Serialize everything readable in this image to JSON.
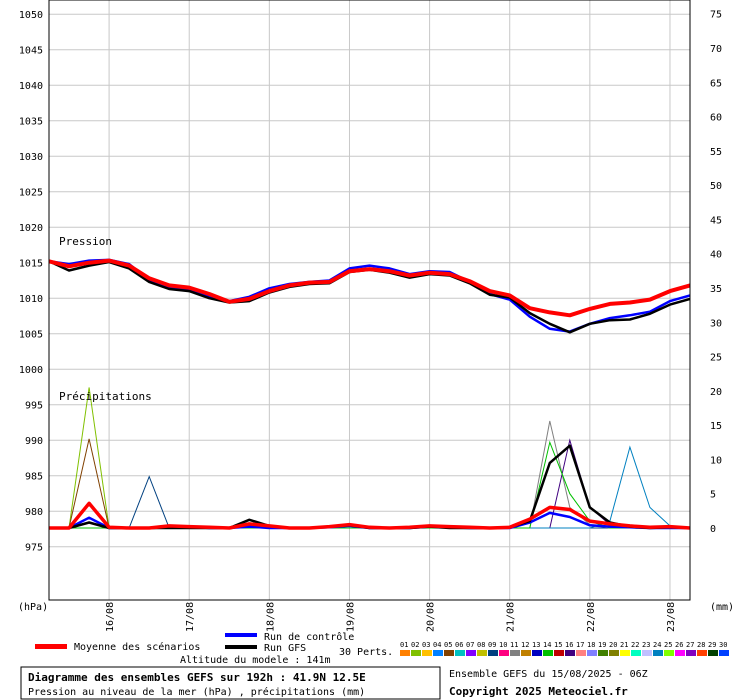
{
  "chart_data": {
    "type": "line",
    "x": [
      "15/08 06Z",
      "15/08 12Z",
      "15/08 18Z",
      "16/08 00Z",
      "16/08 06Z",
      "16/08 12Z",
      "16/08 18Z",
      "17/08 00Z",
      "17/08 06Z",
      "17/08 12Z",
      "17/08 18Z",
      "18/08 00Z",
      "18/08 06Z",
      "18/08 12Z",
      "18/08 18Z",
      "19/08 00Z",
      "19/08 06Z",
      "19/08 12Z",
      "19/08 18Z",
      "20/08 00Z",
      "20/08 06Z",
      "20/08 12Z",
      "20/08 18Z",
      "21/08 00Z",
      "21/08 06Z",
      "21/08 12Z",
      "21/08 18Z",
      "22/08 00Z",
      "22/08 06Z",
      "22/08 12Z",
      "22/08 18Z",
      "23/08 00Z",
      "23/08 06Z"
    ],
    "x_tick_labels": [
      "16/08",
      "17/08",
      "18/08",
      "19/08",
      "20/08",
      "21/08",
      "22/08",
      "23/08"
    ],
    "left_axis": {
      "label": "(hPa)",
      "ylim": [
        967.5,
        1052
      ],
      "ticks": [
        975,
        980,
        985,
        990,
        995,
        1000,
        1005,
        1010,
        1015,
        1020,
        1025,
        1030,
        1035,
        1040,
        1045,
        1050
      ]
    },
    "right_axis": {
      "label": "(mm)",
      "ylim": [
        -10.5,
        77
      ],
      "ticks": [
        0,
        5,
        10,
        15,
        20,
        25,
        30,
        35,
        40,
        45,
        50,
        55,
        60,
        65,
        70,
        75
      ]
    },
    "panel_labels": {
      "pressure": "Pression",
      "precip": "Précipitations"
    },
    "grid": true,
    "pressure_series": [
      {
        "name": "Moyenne des scénarios",
        "color": "#ff0000",
        "values": [
          1015.2,
          1014.5,
          1015.0,
          1015.3,
          1014.6,
          1012.8,
          1011.8,
          1011.5,
          1010.6,
          1009.5,
          1009.9,
          1011.0,
          1011.8,
          1012.2,
          1012.3,
          1013.8,
          1014.1,
          1013.8,
          1013.2,
          1013.6,
          1013.4,
          1012.4,
          1011.0,
          1010.4,
          1008.6,
          1008.0,
          1007.6,
          1008.5,
          1009.2,
          1009.4,
          1009.8,
          1011.0,
          1011.8
        ]
      },
      {
        "name": "Run de contrôle",
        "color": "#0000ff",
        "values": [
          1015.2,
          1014.8,
          1015.3,
          1015.4,
          1014.8,
          1012.6,
          1011.4,
          1011.3,
          1010.2,
          1009.6,
          1010.2,
          1011.4,
          1012.0,
          1012.3,
          1012.5,
          1014.2,
          1014.6,
          1014.2,
          1013.4,
          1013.8,
          1013.7,
          1012.3,
          1010.6,
          1009.8,
          1007.4,
          1005.7,
          1005.3,
          1006.4,
          1007.2,
          1007.6,
          1008.1,
          1009.6,
          1010.4
        ]
      },
      {
        "name": "Run GFS",
        "color": "#000000",
        "values": [
          1015.2,
          1013.9,
          1014.6,
          1015.1,
          1014.2,
          1012.3,
          1011.3,
          1011.0,
          1010.0,
          1009.4,
          1009.6,
          1010.8,
          1011.6,
          1012.0,
          1012.1,
          1013.7,
          1014.0,
          1013.6,
          1012.9,
          1013.4,
          1013.2,
          1012.1,
          1010.5,
          1010.1,
          1007.9,
          1006.4,
          1005.2,
          1006.4,
          1006.9,
          1007.0,
          1007.8,
          1009.1,
          1009.9
        ]
      }
    ],
    "precip_series": [
      {
        "name": "Moyenne des scénarios",
        "color": "#ff0000",
        "values": [
          0,
          0,
          3.6,
          0.1,
          0,
          0,
          0.3,
          0.2,
          0.1,
          0,
          0.6,
          0.3,
          0,
          0,
          0.2,
          0.5,
          0.1,
          0,
          0.1,
          0.3,
          0.2,
          0.1,
          0,
          0.1,
          1.3,
          3.0,
          2.7,
          1.0,
          0.6,
          0.3,
          0.1,
          0.2,
          0
        ]
      },
      {
        "name": "Run de contrôle",
        "color": "#0000ff",
        "values": [
          0,
          0,
          1.5,
          0,
          0,
          0,
          0.1,
          0.2,
          0,
          0,
          0.2,
          0,
          0,
          0,
          0.1,
          0.3,
          0,
          0,
          0,
          0.2,
          0.1,
          0,
          0,
          0,
          0.8,
          2.2,
          1.6,
          0.4,
          0.2,
          0.1,
          0,
          0,
          0
        ]
      },
      {
        "name": "Run GFS",
        "color": "#000000",
        "values": [
          0,
          0,
          0.8,
          0,
          0,
          0,
          0,
          0,
          0,
          0,
          1.2,
          0.3,
          0,
          0,
          0.2,
          0.4,
          0,
          0,
          0,
          0.2,
          0,
          0,
          0,
          0.1,
          1.0,
          9.5,
          12.0,
          3.0,
          0.8,
          0.2,
          0,
          0.1,
          0
        ]
      }
    ],
    "perturbation_precip_peaks": [
      {
        "member": "02",
        "values": [
          0,
          0,
          20.5,
          0,
          0,
          0,
          0,
          0,
          0,
          0,
          0,
          0,
          0,
          0,
          0,
          0,
          0,
          0,
          0,
          0,
          0,
          0,
          0,
          0,
          0,
          0,
          0,
          0,
          0,
          0,
          0,
          0,
          0
        ]
      },
      {
        "member": "05",
        "values": [
          0,
          0,
          13.0,
          0,
          0,
          0,
          0,
          0,
          0,
          0,
          0,
          0,
          0,
          0,
          0,
          0,
          0,
          0,
          0,
          0,
          0,
          0,
          0,
          0,
          0,
          0,
          0,
          0,
          0,
          0,
          0,
          0,
          0
        ]
      },
      {
        "member": "09",
        "values": [
          0,
          0,
          0,
          0,
          0,
          7.5,
          0,
          0,
          0,
          0,
          0,
          0,
          0,
          0,
          0,
          0,
          0,
          0,
          0,
          0,
          0,
          0,
          0,
          0,
          0,
          0,
          0,
          0,
          0,
          0,
          0,
          0,
          0
        ]
      },
      {
        "member": "11",
        "values": [
          0,
          0,
          0,
          0,
          0,
          0,
          0,
          0,
          0,
          0,
          0,
          0,
          0,
          0,
          0,
          0,
          0,
          0,
          0,
          0,
          0,
          0,
          0,
          0,
          0,
          15.6,
          3.0,
          0.5,
          0,
          0,
          0,
          0,
          0
        ]
      },
      {
        "member": "16",
        "values": [
          0,
          0,
          0,
          0,
          0,
          0,
          0,
          0,
          0,
          0,
          0,
          0,
          0,
          0,
          0,
          0,
          0,
          0,
          0,
          0,
          0,
          0,
          0,
          0,
          0,
          0,
          12.8,
          3.0,
          0.5,
          0,
          0,
          0,
          0
        ]
      },
      {
        "member": "24",
        "values": [
          0,
          0,
          0,
          0,
          0,
          0,
          0,
          0,
          0,
          0,
          0,
          0,
          0,
          0,
          0,
          0,
          0,
          0,
          0,
          0,
          0,
          0,
          0,
          0,
          0,
          0,
          0,
          0,
          1.0,
          11.8,
          3.0,
          0.3,
          0
        ]
      },
      {
        "member": "14",
        "values": [
          0,
          0,
          0,
          0,
          0,
          0,
          0,
          0,
          0,
          0,
          0,
          0,
          0,
          0,
          0,
          0,
          0,
          0,
          0,
          0,
          0,
          0,
          0,
          0,
          0,
          12.5,
          5.0,
          1.0,
          0,
          0,
          0,
          0,
          0
        ]
      }
    ],
    "perturbations_label": "30 Perts.",
    "member_labels": [
      "01",
      "02",
      "03",
      "04",
      "05",
      "06",
      "07",
      "08",
      "09",
      "10",
      "11",
      "12",
      "13",
      "14",
      "15",
      "16",
      "17",
      "18",
      "19",
      "20",
      "21",
      "22",
      "23",
      "24",
      "25",
      "26",
      "27",
      "28",
      "29",
      "30"
    ],
    "member_colors": [
      "#ff8000",
      "#80c000",
      "#ffc000",
      "#0080ff",
      "#804000",
      "#00c0c0",
      "#8000ff",
      "#c0c000",
      "#004080",
      "#ff0080",
      "#808080",
      "#c08000",
      "#0000c0",
      "#00c000",
      "#c00000",
      "#400080",
      "#ff8080",
      "#8080ff",
      "#408000",
      "#808000",
      "#ffff00",
      "#00ffc0",
      "#c0c0ff",
      "#0080c0",
      "#80ff00",
      "#ff00ff",
      "#8000c0",
      "#ff4000",
      "#004000",
      "#0040ff"
    ]
  },
  "legend": {
    "mean_label": "Moyenne des scénarios",
    "control_label": "Run de contrôle",
    "gfs_label": "Run GFS",
    "altitude_text": "Altitude du modele : 141m"
  },
  "footer": {
    "title": "Diagramme des ensembles GEFS sur 192h : 41.9N 12.5E",
    "subtitle": "Pression au niveau de la mer (hPa) , précipitations (mm)",
    "run_text": "Ensemble GEFS du 15/08/2025 - 06Z",
    "copyright": "Copyright 2025 Meteociel.fr"
  }
}
